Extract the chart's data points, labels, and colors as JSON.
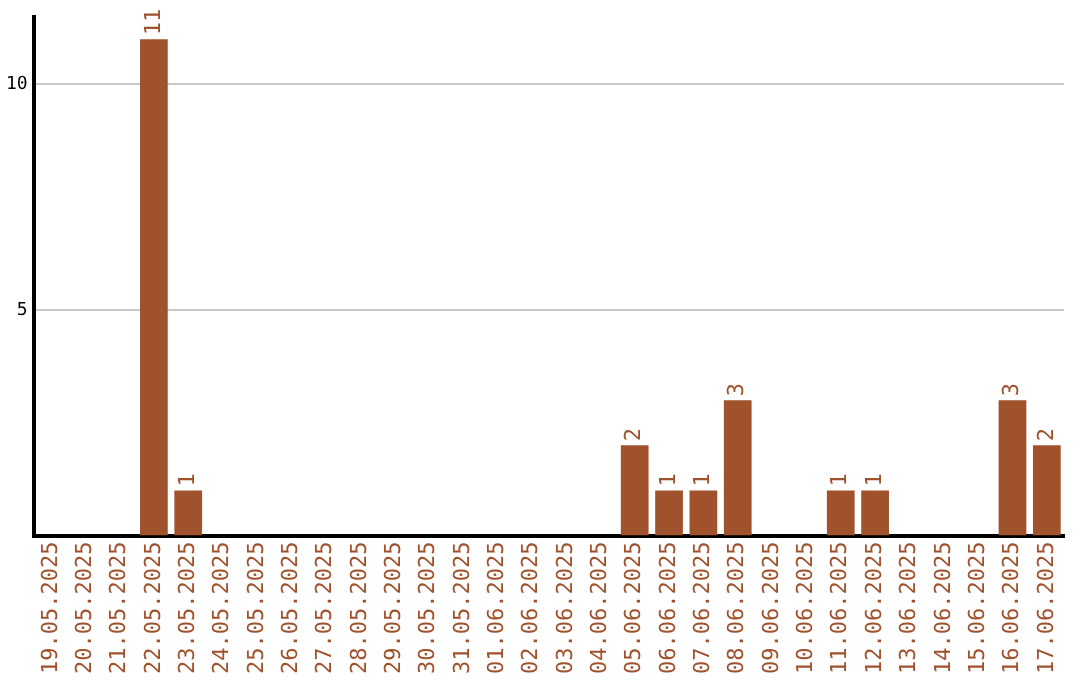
{
  "chart_data": {
    "type": "bar",
    "categories": [
      "19.05.2025",
      "20.05.2025",
      "21.05.2025",
      "22.05.2025",
      "23.05.2025",
      "24.05.2025",
      "25.05.2025",
      "26.05.2025",
      "27.05.2025",
      "28.05.2025",
      "29.05.2025",
      "30.05.2025",
      "31.05.2025",
      "01.06.2025",
      "02.06.2025",
      "03.06.2025",
      "04.06.2025",
      "05.06.2025",
      "06.06.2025",
      "07.06.2025",
      "08.06.2025",
      "09.06.2025",
      "10.06.2025",
      "11.06.2025",
      "12.06.2025",
      "13.06.2025",
      "14.06.2025",
      "15.06.2025",
      "16.06.2025",
      "17.06.2025"
    ],
    "values": [
      0,
      0,
      0,
      11,
      1,
      0,
      0,
      0,
      0,
      0,
      0,
      0,
      0,
      0,
      0,
      0,
      0,
      2,
      1,
      1,
      3,
      0,
      0,
      1,
      1,
      0,
      0,
      0,
      3,
      2
    ],
    "value_labels": [
      null,
      null,
      null,
      "11",
      "1",
      null,
      null,
      null,
      null,
      null,
      null,
      null,
      null,
      null,
      null,
      null,
      null,
      "2",
      "1",
      "1",
      "3",
      null,
      null,
      "1",
      "1",
      null,
      null,
      null,
      "3",
      "2"
    ],
    "color": "#a0522d",
    "ylim": [
      0,
      11.5
    ],
    "yticks": [
      5,
      10
    ],
    "grid": "y",
    "legend": false
  }
}
